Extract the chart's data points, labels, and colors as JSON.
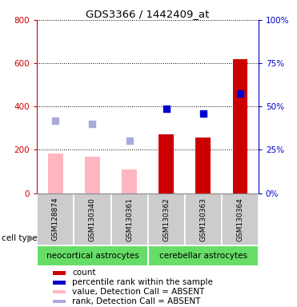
{
  "title": "GDS3366 / 1442409_at",
  "samples": [
    "GSM128874",
    "GSM130340",
    "GSM130361",
    "GSM130362",
    "GSM130363",
    "GSM130364"
  ],
  "cell_types": [
    {
      "label": "neocortical astrocytes",
      "x_range": [
        0,
        2
      ],
      "color": "#66DD66"
    },
    {
      "label": "cerebellar astrocytes",
      "x_range": [
        3,
        5
      ],
      "color": "#66DD66"
    }
  ],
  "count_values": [
    null,
    null,
    null,
    270,
    258,
    620
  ],
  "percentile_values": [
    null,
    null,
    null,
    390,
    368,
    460
  ],
  "value_absent": [
    183,
    168,
    108,
    null,
    null,
    null
  ],
  "rank_absent": [
    335,
    320,
    243,
    null,
    null,
    null
  ],
  "left_ylim": [
    0,
    800
  ],
  "right_ylim": [
    0,
    100
  ],
  "left_yticks": [
    0,
    200,
    400,
    600,
    800
  ],
  "right_yticks": [
    0,
    25,
    50,
    75,
    100
  ],
  "left_yticklabels": [
    "0",
    "200",
    "400",
    "600",
    "800"
  ],
  "right_yticklabels": [
    "0%",
    "25%",
    "50%",
    "75%",
    "100%"
  ],
  "count_color": "#CC0000",
  "percentile_color": "#0000CC",
  "value_absent_color": "#FFB6C1",
  "rank_absent_color": "#AAAADD",
  "bar_width": 0.4,
  "cell_type_label": "cell type",
  "legend_items": [
    {
      "color": "#CC0000",
      "label": "count"
    },
    {
      "color": "#0000CC",
      "label": "percentile rank within the sample"
    },
    {
      "color": "#FFB6C1",
      "label": "value, Detection Call = ABSENT"
    },
    {
      "color": "#AAAADD",
      "label": "rank, Detection Call = ABSENT"
    }
  ]
}
